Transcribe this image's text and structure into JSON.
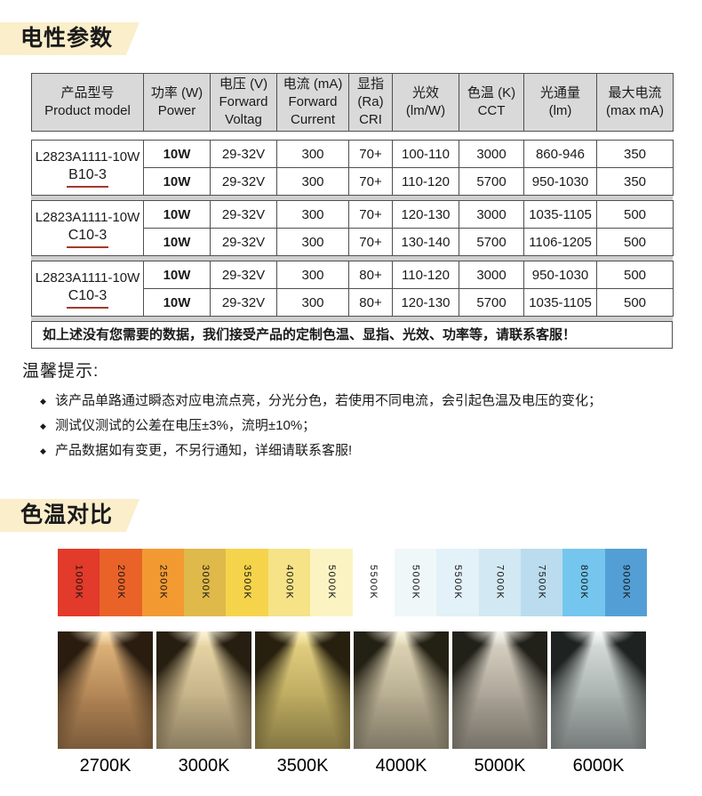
{
  "colors": {
    "title_bg": "#fbeecb",
    "header_bg": "#d9d9d9",
    "underline": "#a33a2c"
  },
  "sections": {
    "electrical_title": "电性参数",
    "cct_title": "色温对比"
  },
  "table": {
    "header": [
      {
        "lines": [
          "产品型号",
          "Product model"
        ]
      },
      {
        "lines": [
          "功率 (W)",
          "Power"
        ]
      },
      {
        "lines": [
          "电压 (V)",
          "Forward",
          "Voltag"
        ]
      },
      {
        "lines": [
          "电流 (mA)",
          "Forward",
          "Current"
        ]
      },
      {
        "lines": [
          "显指",
          "(Ra)",
          "CRI"
        ]
      },
      {
        "lines": [
          "光效",
          "(lm/W)"
        ]
      },
      {
        "lines": [
          "色温 (K)",
          "CCT"
        ]
      },
      {
        "lines": [
          "光通量",
          "(lm)"
        ]
      },
      {
        "lines": [
          "最大电流",
          "(max  mA)"
        ]
      }
    ],
    "blocks": [
      {
        "model": "L2823A1111-10W",
        "variant": "B10-3",
        "rows": [
          [
            "10W",
            "29-32V",
            "300",
            "70+",
            "100-110",
            "3000",
            "860-946",
            "350"
          ],
          [
            "10W",
            "29-32V",
            "300",
            "70+",
            "110-120",
            "5700",
            "950-1030",
            "350"
          ]
        ]
      },
      {
        "model": "L2823A1111-10W",
        "variant": "C10-3",
        "rows": [
          [
            "10W",
            "29-32V",
            "300",
            "70+",
            "120-130",
            "3000",
            "1035-1105",
            "500"
          ],
          [
            "10W",
            "29-32V",
            "300",
            "70+",
            "130-140",
            "5700",
            "1106-1205",
            "500"
          ]
        ]
      },
      {
        "model": "L2823A1111-10W",
        "variant": "C10-3",
        "rows": [
          [
            "10W",
            "29-32V",
            "300",
            "80+",
            "110-120",
            "3000",
            "950-1030",
            "500"
          ],
          [
            "10W",
            "29-32V",
            "300",
            "80+",
            "120-130",
            "5700",
            "1035-1105",
            "500"
          ]
        ]
      }
    ],
    "note": "如上述没有您需要的数据，我们接受产品的定制色温、显指、光效、功率等，请联系客服！"
  },
  "tips": {
    "heading": "温馨提示:",
    "bullet_glyph": "◆",
    "items": [
      "该产品单路通过瞬态对应电流点亮，分光分色，若使用不同电流，会引起色温及电压的变化；",
      "测试仪测试的公差在电压±3%，流明±10%；",
      "产品数据如有变更，不另行通知，详细请联系客服!"
    ]
  },
  "swatches": [
    {
      "label": "1000K",
      "color": "#e23a2b"
    },
    {
      "label": "2000K",
      "color": "#e96329"
    },
    {
      "label": "2500K",
      "color": "#f29a31"
    },
    {
      "label": "3000K",
      "color": "#dfb94a"
    },
    {
      "label": "3500K",
      "color": "#f5d44c"
    },
    {
      "label": "4000K",
      "color": "#f6e387"
    },
    {
      "label": "5000K",
      "color": "#fbf4c2"
    },
    {
      "label": "5500K",
      "color": "#ffffff"
    },
    {
      "label": "5000K",
      "color": "#eff7f9"
    },
    {
      "label": "5500K",
      "color": "#e3f1f8"
    },
    {
      "label": "7000K",
      "color": "#d2e9f3"
    },
    {
      "label": "7500K",
      "color": "#badcee"
    },
    {
      "label": "8000K",
      "color": "#74c6ee"
    },
    {
      "label": "9000K",
      "color": "#539fd5"
    }
  ],
  "beams": [
    {
      "label": "2700K",
      "colors": {
        "hot": "#fdeecd",
        "light": "#e8bd82",
        "wall": "#b08354",
        "dark": "#2a1d10"
      }
    },
    {
      "label": "3000K",
      "colors": {
        "hot": "#fdf5dc",
        "light": "#eedcab",
        "wall": "#c4b188",
        "dark": "#261e10"
      }
    },
    {
      "label": "3500K",
      "colors": {
        "hot": "#fdf4c8",
        "light": "#ead687",
        "wall": "#bcaa60",
        "dark": "#27200e"
      }
    },
    {
      "label": "4000K",
      "colors": {
        "hot": "#fdfae8",
        "light": "#e6dcbb",
        "wall": "#b5ab90",
        "dark": "#232014"
      }
    },
    {
      "label": "5000K",
      "colors": {
        "hot": "#fbfaf4",
        "light": "#dfd9cb",
        "wall": "#a9a295",
        "dark": "#212019"
      }
    },
    {
      "label": "6000K",
      "colors": {
        "hot": "#fafdfc",
        "light": "#dee4e2",
        "wall": "#a8b0ae",
        "dark": "#1e2322"
      }
    }
  ]
}
